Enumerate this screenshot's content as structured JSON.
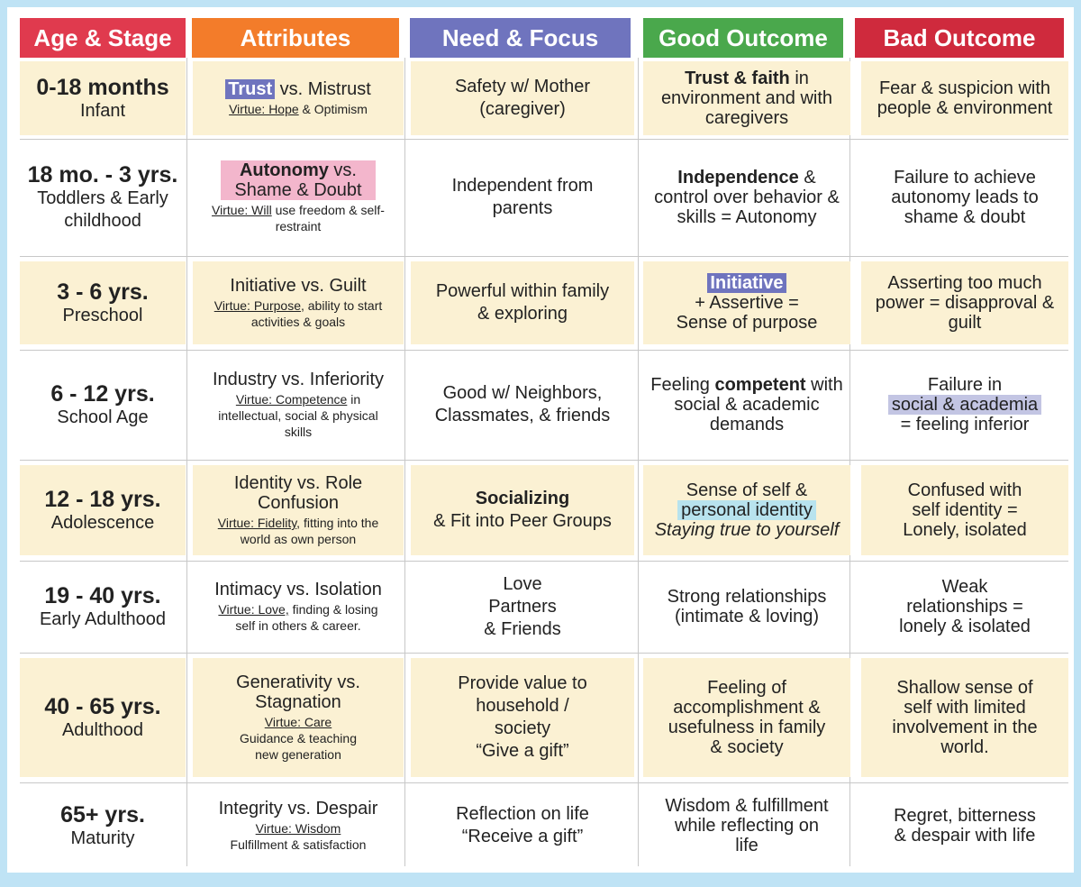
{
  "headers": [
    "Age & Stage",
    "Attributes",
    "Need & Focus",
    "Good Outcome",
    "Bad Outcome"
  ],
  "rows": [
    {
      "age": "0-18 months",
      "stage": "Infant",
      "attr_hl": "Trust",
      "attr_rest": " vs. Mistrust",
      "virtue_label": "Virtue: Hope",
      "virtue_rest": " & Optimism",
      "need": [
        "Safety w/ Mother",
        "(caregiver)"
      ],
      "good_bold": "Trust & faith",
      "good_rest": " in environment and with caregivers",
      "bad": "Fear & suspicion with people & environment"
    },
    {
      "age": "18 mo. - 3 yrs.",
      "stage": "Toddlers & Early childhood",
      "attr_bold": "Autonomy",
      "attr_rest": " vs. Shame & Doubt",
      "virtue_label": "Virtue: Will",
      "virtue_rest": " use freedom & self-restraint",
      "need": [
        "Independent from",
        "parents"
      ],
      "good_bold": "Independence",
      "good_rest": " & control over behavior & skills = Autonomy",
      "bad": "Failure to achieve autonomy leads to shame & doubt"
    },
    {
      "age": "3 - 6 yrs.",
      "stage": "Preschool",
      "attr": "Initiative vs. Guilt",
      "virtue_label": "Virtue: Purpose",
      "virtue_rest": ", ability to start activities & goals",
      "need": [
        "Powerful within family",
        "& exploring"
      ],
      "good_hl": "Initiative",
      "good_rest": [
        "+ Assertive =",
        "Sense of purpose"
      ],
      "bad": "Asserting too much power = disapproval & guilt"
    },
    {
      "age": "6 - 12 yrs.",
      "stage": "School Age",
      "attr": "Industry vs. Inferiority",
      "virtue_label": "Virtue: Competence",
      "virtue_rest": " in intellectual, social & physical skills",
      "need": [
        "Good w/ Neighbors,",
        "Classmates, & friends"
      ],
      "good_pre": "Feeling ",
      "good_bold": "competent",
      "good_rest": " with social & academic demands",
      "bad_pre": "Failure in",
      "bad_hl": "social & academia",
      "bad_post": "= feeling inferior"
    },
    {
      "age": "12 - 18 yrs.",
      "stage": "Adolescence",
      "attr": "Identity vs. Role Confusion",
      "virtue_label": "Virtue: Fidelity",
      "virtue_rest": ", fitting into the world as own person",
      "need_bold": "Socializing",
      "need_rest": "& Fit into Peer Groups",
      "good_pre": "Sense of self &",
      "good_hl": "personal identity",
      "good_ital": "Staying true to yourself",
      "bad": "Confused with self identity = Lonely, isolated"
    },
    {
      "age": "19 - 40 yrs.",
      "stage": "Early Adulthood",
      "attr": "Intimacy vs. Isolation",
      "virtue_label": "Virtue: Love,",
      "virtue_rest": " finding & losing self in others & career.",
      "need": [
        "Love",
        "Partners",
        "& Friends"
      ],
      "good": "Strong relationships (intimate & loving)",
      "bad": "Weak relationships = lonely & isolated"
    },
    {
      "age": "40 - 65 yrs.",
      "stage": "Adulthood",
      "attr": "Generativity vs. Stagnation",
      "virtue_label": "Virtue: Care",
      "virtue_rest": "Guidance & teaching new generation",
      "need": [
        "Provide value to",
        "household /",
        "society",
        "“Give a gift”"
      ],
      "good": "Feeling of accomplishment & usefulness in family & society",
      "bad": "Shallow sense of self with limited involvement in the world."
    },
    {
      "age": "65+ yrs.",
      "stage": "Maturity",
      "attr": "Integrity vs. Despair",
      "virtue_label": "Virtue: Wisdom",
      "virtue_rest": "Fulfillment & satisfaction",
      "need": [
        "Reflection on life",
        "“Receive a gift”"
      ],
      "good": "Wisdom & fulfillment while reflecting on life",
      "bad": "Regret, bitterness & despair with life"
    }
  ],
  "colors": {
    "age_header": "#e03a4e",
    "attributes_header": "#f37c2a",
    "need_header": "#6f74be",
    "good_header": "#4aa84c",
    "bad_header": "#cf2a3d",
    "shade": "#fbf1d3",
    "border": "#bfe3f5"
  }
}
